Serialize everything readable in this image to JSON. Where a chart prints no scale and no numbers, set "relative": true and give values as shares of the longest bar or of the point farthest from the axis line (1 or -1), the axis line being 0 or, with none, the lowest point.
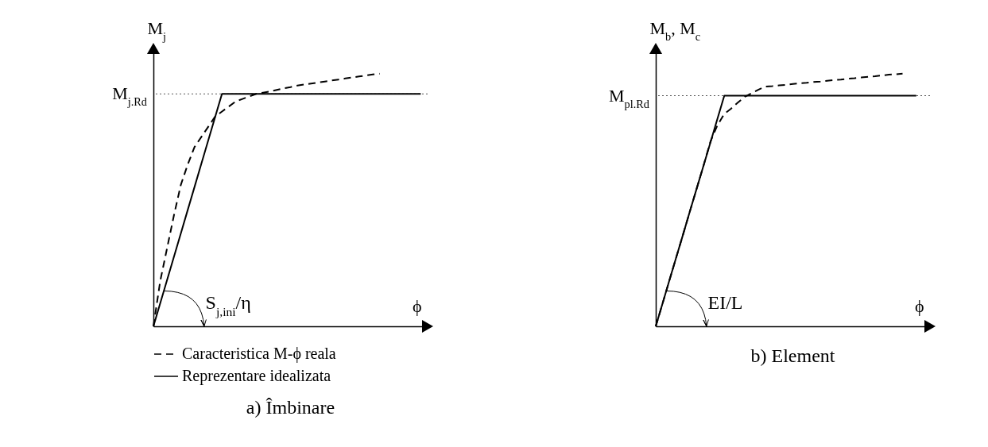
{
  "chart_data": [
    {
      "type": "line",
      "relative": true,
      "title": "a) Îmbinare",
      "ylabel": "M$_{j}$",
      "xlabel": "ϕ",
      "legend": "bottom left",
      "categories": [
        null,
        null,
        null,
        null,
        null,
        null,
        null,
        null,
        null,
        null,
        null,
        null,
        null,
        null,
        null,
        null,
        null,
        null,
        null,
        null,
        null,
        null,
        null,
        null,
        null,
        null,
        null,
        null,
        null,
        null,
        null,
        null,
        null,
        null,
        null,
        null,
        null,
        null,
        null,
        null,
        null
      ],
      "series": [
        {
          "name": "Caracteristica M-ϕ reala",
          "color": "#000000",
          "line_style": "dashed",
          "values": [
            0,
            0.18,
            0.31,
            0.44,
            0.56,
            0.64,
            0.71,
            0.75,
            0.79,
            0.83,
            0.85,
            0.87,
            0.89,
            0.9,
            0.91,
            0.92,
            0.925,
            0.93,
            0.936,
            0.942,
            0.947,
            0.953,
            0.957,
            0.961,
            0.965,
            0.969,
            0.973,
            0.977,
            0.981,
            0.985,
            0.989,
            0.993,
            0.997,
            1,
            null,
            null,
            null,
            null,
            null,
            null,
            null
          ]
        },
        {
          "name": "Reprezentare idealizata",
          "color": "#000000",
          "line_style": "solid",
          "values": [
            0,
            0.092,
            0.184,
            0.276,
            0.368,
            0.46,
            0.552,
            0.644,
            0.736,
            0.828,
            0.92,
            0.92,
            0.92,
            0.92,
            0.92,
            0.92,
            0.92,
            0.92,
            0.92,
            0.92,
            0.92,
            0.92,
            0.92,
            0.92,
            0.92,
            0.92,
            0.92,
            0.92,
            0.92,
            0.92,
            0.92,
            0.92,
            0.92,
            0.92,
            0.92,
            0.92,
            0.92,
            0.92,
            0.92,
            0.92,
            null
          ]
        }
      ],
      "ref_lines": [
        {
          "axis": "y",
          "value": 0.92,
          "label": "M$_{j.Rd}$",
          "line_style": "dotted"
        }
      ],
      "annotations": [
        "S$_{j,ini}$/η"
      ]
    },
    {
      "type": "line",
      "relative": true,
      "title": "b) Element",
      "ylabel": "M$_{b}$, M$_{c}$",
      "xlabel": "ϕ",
      "categories": [
        null,
        null,
        null,
        null,
        null,
        null,
        null,
        null,
        null,
        null,
        null,
        null,
        null,
        null,
        null,
        null,
        null,
        null,
        null,
        null,
        null,
        null,
        null,
        null,
        null,
        null,
        null,
        null,
        null,
        null,
        null,
        null,
        null,
        null,
        null,
        null,
        null,
        null,
        null,
        null,
        null
      ],
      "series": [
        {
          "color": "#000000",
          "line_style": "dashed",
          "values": [
            0,
            0.091,
            0.183,
            0.274,
            0.365,
            0.457,
            0.548,
            0.639,
            0.733,
            0.796,
            0.841,
            0.862,
            0.886,
            0.909,
            0.923,
            0.937,
            0.949,
            0.951,
            0.954,
            0.956,
            0.959,
            0.962,
            0.964,
            0.967,
            0.969,
            0.972,
            0.975,
            0.977,
            0.98,
            0.982,
            0.985,
            0.988,
            0.99,
            0.993,
            0.996,
            0.998,
            1,
            null,
            null,
            null,
            null
          ]
        },
        {
          "color": "#000000",
          "line_style": "solid",
          "values": [
            0,
            0.091,
            0.183,
            0.274,
            0.365,
            0.457,
            0.548,
            0.639,
            0.73,
            0.822,
            0.913,
            0.913,
            0.913,
            0.913,
            0.913,
            0.913,
            0.913,
            0.913,
            0.913,
            0.913,
            0.913,
            0.913,
            0.913,
            0.913,
            0.913,
            0.913,
            0.913,
            0.913,
            0.913,
            0.913,
            0.913,
            0.913,
            0.913,
            0.913,
            0.913,
            0.913,
            0.913,
            0.913,
            0.913,
            null,
            null
          ]
        }
      ],
      "ref_lines": [
        {
          "axis": "y",
          "value": 0.913,
          "label": "M$_{pl.Rd}$",
          "line_style": "dotted"
        }
      ],
      "annotations": [
        "EI/L"
      ]
    }
  ]
}
